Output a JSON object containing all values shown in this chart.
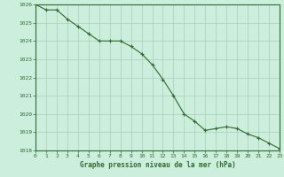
{
  "x": [
    0,
    1,
    2,
    3,
    4,
    5,
    6,
    7,
    8,
    9,
    10,
    11,
    12,
    13,
    14,
    15,
    16,
    17,
    18,
    19,
    20,
    21,
    22,
    23
  ],
  "y": [
    1026.0,
    1025.7,
    1025.7,
    1025.2,
    1024.8,
    1024.4,
    1024.0,
    1024.0,
    1024.0,
    1023.7,
    1023.3,
    1022.7,
    1021.9,
    1021.0,
    1020.0,
    1019.6,
    1019.1,
    1019.2,
    1019.3,
    1019.2,
    1018.9,
    1018.7,
    1018.4,
    1018.1
  ],
  "line_color": "#2d6a2d",
  "marker": "+",
  "bg_color": "#cceedd",
  "grid_color": "#aaccbb",
  "axis_color": "#2d6a2d",
  "text_color": "#2d6a2d",
  "xlabel": "Graphe pression niveau de la mer (hPa)",
  "ylim_min": 1018,
  "ylim_max": 1026,
  "xlim_min": 0,
  "xlim_max": 23,
  "yticks": [
    1018,
    1019,
    1020,
    1021,
    1022,
    1023,
    1024,
    1025,
    1026
  ],
  "xticks": [
    0,
    1,
    2,
    3,
    4,
    5,
    6,
    7,
    8,
    9,
    10,
    11,
    12,
    13,
    14,
    15,
    16,
    17,
    18,
    19,
    20,
    21,
    22,
    23
  ]
}
